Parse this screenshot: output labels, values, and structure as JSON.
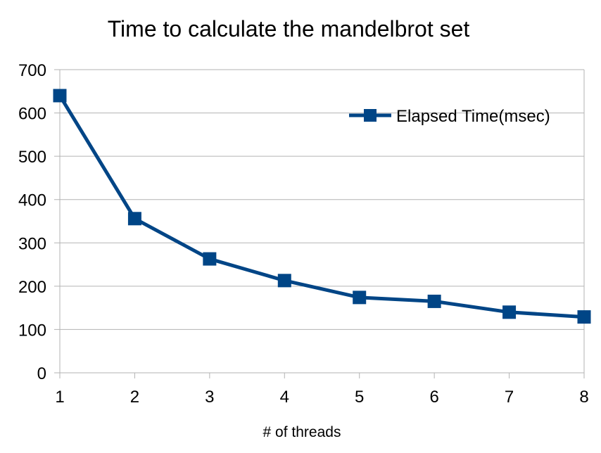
{
  "chart_data": {
    "type": "line",
    "title": "Time to calculate the mandelbrot set",
    "xlabel": "# of threads",
    "ylabel": "",
    "categories": [
      "1",
      "2",
      "3",
      "4",
      "5",
      "6",
      "7",
      "8"
    ],
    "series": [
      {
        "name": "Elapsed Time(msec)",
        "values": [
          640,
          356,
          263,
          213,
          174,
          165,
          140,
          129
        ],
        "color": "#004586",
        "marker": "square"
      }
    ],
    "ylim": [
      0,
      700
    ],
    "yticks": [
      0,
      100,
      200,
      300,
      400,
      500,
      600,
      700
    ],
    "grid": true,
    "legend_position": "top-right"
  }
}
